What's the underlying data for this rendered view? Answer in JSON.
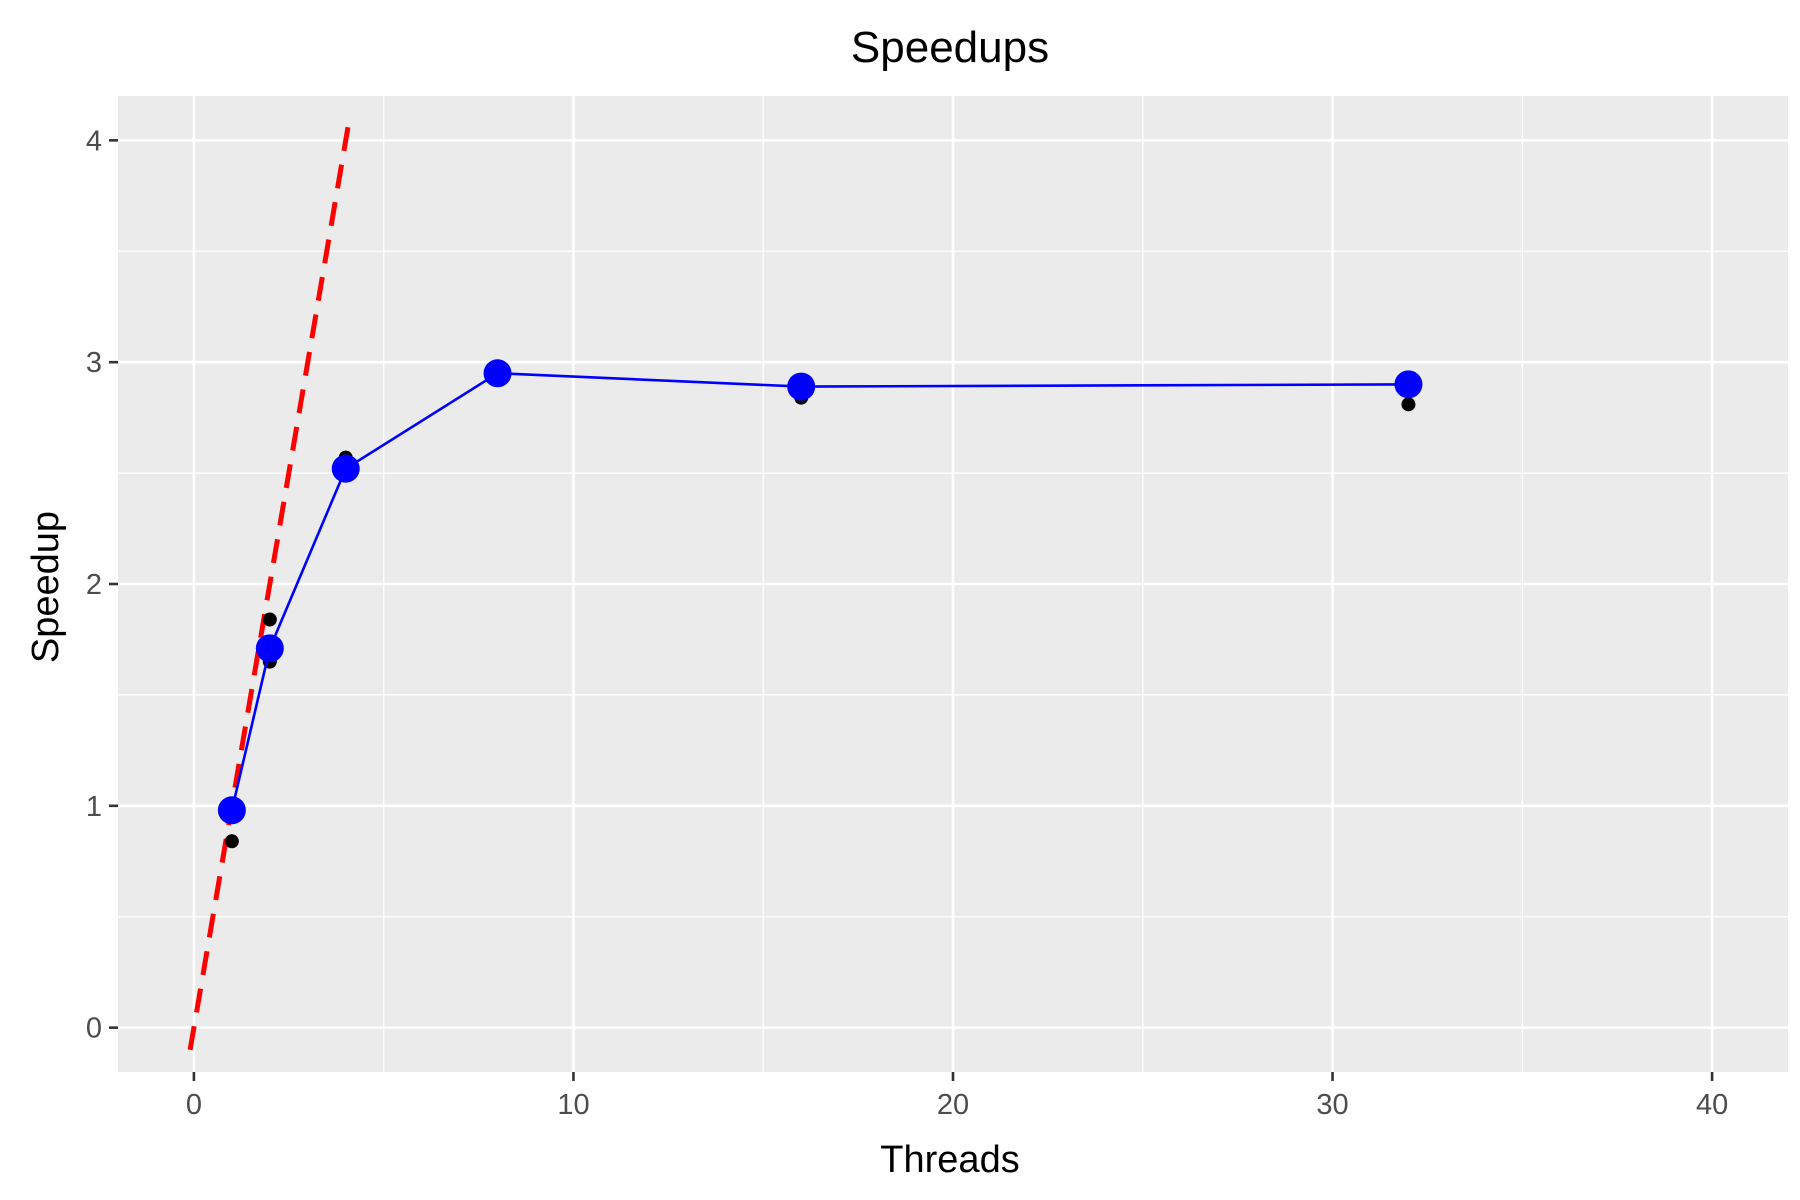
{
  "chart_data": {
    "type": "line",
    "title": "Speedups",
    "xlabel": "Threads",
    "ylabel": "Speedup",
    "xlim": [
      -2,
      42
    ],
    "ylim": [
      -0.2,
      4.2
    ],
    "x_ticks": [
      0,
      10,
      20,
      30,
      40
    ],
    "x_tick_labels": [
      "0",
      "10",
      "20",
      "30",
      "40"
    ],
    "y_ticks": [
      0,
      1,
      2,
      3,
      4
    ],
    "y_tick_labels": [
      "0",
      "1",
      "2",
      "3",
      "4"
    ],
    "grid": true,
    "legend": "none",
    "series": [
      {
        "kind": "mean-line",
        "color": "#0000ff",
        "x": [
          1,
          2,
          4,
          8,
          16,
          32
        ],
        "y": [
          0.98,
          1.71,
          2.52,
          2.95,
          2.89,
          2.9
        ]
      },
      {
        "kind": "observations",
        "color": "#000000",
        "x": [
          1,
          1,
          2,
          2,
          2,
          4,
          4,
          8,
          8,
          16,
          16,
          32,
          32,
          32
        ],
        "y": [
          0.84,
          0.99,
          1.84,
          1.65,
          1.72,
          2.57,
          2.5,
          2.96,
          2.94,
          2.84,
          2.9,
          2.81,
          2.93,
          2.9
        ]
      },
      {
        "kind": "ideal-reference",
        "color": "#ff0000",
        "style": "dashed",
        "x": [
          -0.1,
          4.1
        ],
        "y": [
          -0.1,
          4.1
        ]
      }
    ]
  }
}
